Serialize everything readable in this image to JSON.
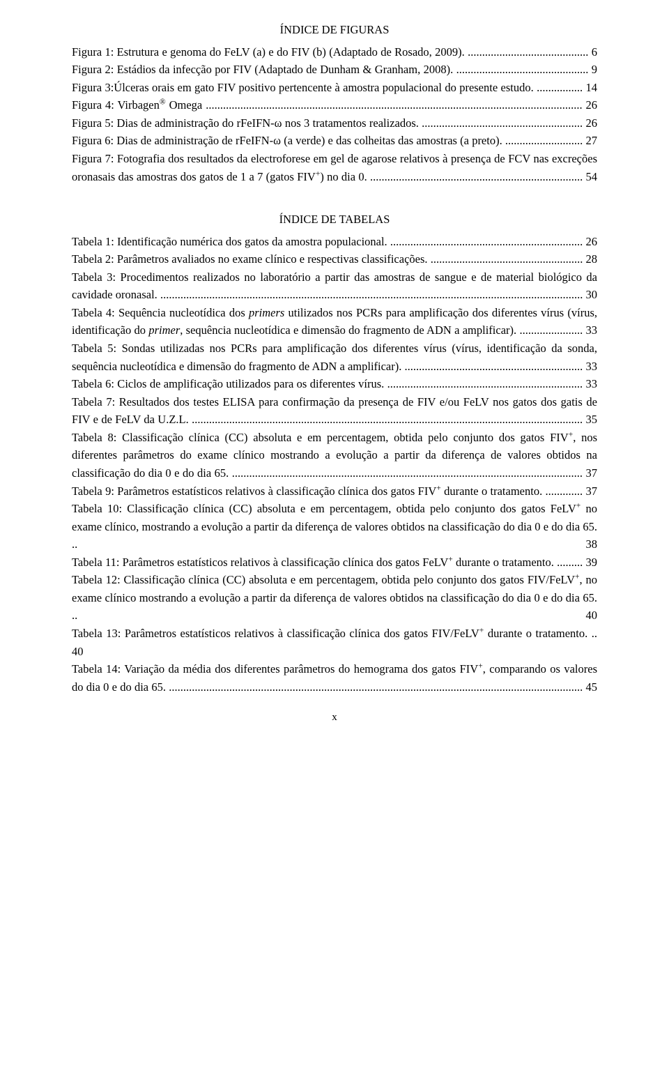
{
  "figures_heading": "ÍNDICE DE FIGURAS",
  "tables_heading": "ÍNDICE DE TABELAS",
  "page_number": "x",
  "figures": [
    {
      "text": "Figura 1: Estrutura e genoma do FeLV (a) e do FIV (b) (Adaptado de Rosado, 2009).",
      "page": "6"
    },
    {
      "text": "Figura 2: Estádios da infecção por FIV (Adaptado de Dunham & Granham, 2008).",
      "page": "9"
    },
    {
      "text": "Figura 3:Úlceras orais em gato FIV positivo pertencente à amostra populacional do presente estudo.",
      "page": "14"
    },
    {
      "text": "Figura 4: Virbagen<sup>®</sup> Omega",
      "page": "26"
    },
    {
      "text": "Figura 5: Dias de administração do rFeIFN-ω nos 3 tratamentos realizados.",
      "page": "26"
    },
    {
      "text": "Figura 6: Dias de administração de rFeIFN-ω (a verde) e das colheitas das amostras (a preto).",
      "page": "27"
    },
    {
      "text": "Figura 7: Fotografia dos resultados da electroforese em gel de agarose relativos à presença de FCV nas excreções oronasais das amostras dos gatos de 1 a 7 (gatos FIV<sup>+</sup>) no dia 0.",
      "page": "54"
    }
  ],
  "tables": [
    {
      "text": "Tabela 1: Identificação numérica dos gatos da amostra populacional.",
      "page": "26"
    },
    {
      "text": "Tabela 2: Parâmetros avaliados no exame clínico e respectivas classificações.",
      "page": "28"
    },
    {
      "text": "Tabela 3: Procedimentos realizados no laboratório a partir das amostras de sangue e de material biológico da cavidade oronasal.",
      "page": "30"
    },
    {
      "text": "Tabela 4: Sequência nucleotídica dos <i>primers</i> utilizados nos PCRs para amplificação dos diferentes vírus (vírus, identificação do <i>primer</i>, sequência nucleotídica e dimensão do fragmento de ADN a amplificar).",
      "page": "33"
    },
    {
      "text": "Tabela 5: Sondas utilizadas nos PCRs para amplificação dos diferentes vírus (vírus, identificação da sonda, sequência nucleotídica e dimensão do fragmento de ADN a amplificar).",
      "page": "33"
    },
    {
      "text": "Tabela 6: Ciclos de amplificação utilizados para os diferentes vírus.",
      "page": "33"
    },
    {
      "text": "Tabela 7: Resultados dos testes ELISA para confirmação da presença de FIV e/ou FeLV nos gatos dos gatis de FIV e de FeLV da U.Z.L.",
      "page": "35"
    },
    {
      "text": "Tabela 8: Classificação clínica (CC) absoluta e em percentagem, obtida pelo conjunto dos gatos FIV<sup>+</sup>, nos diferentes parâmetros do exame clínico mostrando a evolução a partir da diferença de valores obtidos na classificação do dia 0 e do dia 65.",
      "page": "37"
    },
    {
      "text": "Tabela 9: Parâmetros estatísticos relativos à classificação clínica dos gatos FIV<sup>+</sup> durante o tratamento.",
      "page": "37"
    },
    {
      "text": "Tabela 10: Classificação clínica (CC) absoluta e em percentagem, obtida pelo conjunto dos gatos FeLV<sup>+</sup> no exame clínico, mostrando a evolução a partir da diferença de valores obtidos na classificação do dia 0 e do dia 65.",
      "page": "38"
    },
    {
      "text": "Tabela 11: Parâmetros estatísticos relativos à classificação clínica dos gatos FeLV<sup>+</sup> durante o tratamento.",
      "page": "39"
    },
    {
      "text": "Tabela 12: Classificação clínica (CC) absoluta e em percentagem, obtida pelo conjunto dos gatos FIV/FeLV<sup>+</sup>, no exame clínico mostrando a evolução a partir da diferença de valores obtidos na classificação do dia 0 e do dia 65.",
      "page": "40"
    },
    {
      "text": "Tabela 13: Parâmetros estatísticos relativos à classificação clínica dos gatos FIV/FeLV<sup>+</sup> durante o tratamento.",
      "page": "40"
    },
    {
      "text": "Tabela 14: Variação da média dos diferentes parâmetros do hemograma dos gatos FIV<sup>+</sup>, comparando os valores do dia 0 e do dia 65.",
      "page": "45"
    }
  ]
}
